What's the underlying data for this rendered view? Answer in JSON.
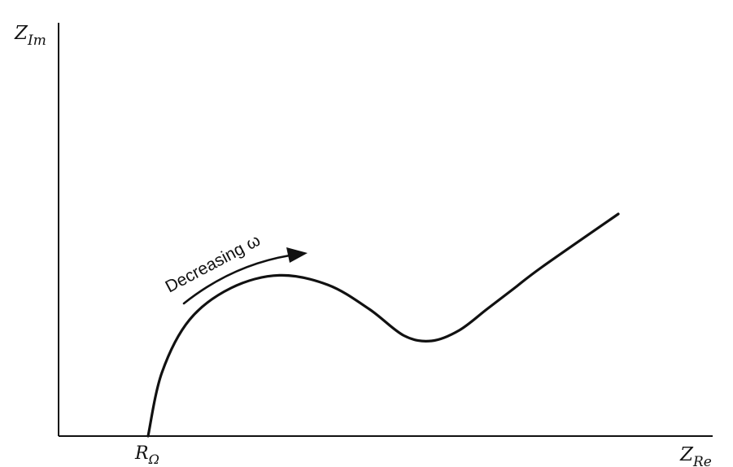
{
  "chart_data": {
    "type": "line",
    "title": "",
    "y_axis_label": {
      "main": "Z",
      "sub": "Im"
    },
    "x_axis_label": {
      "main": "Z",
      "sub": "Re"
    },
    "x_tick_label": {
      "main": "R",
      "sub": "Ω"
    },
    "annotation": "Decreasing ω",
    "grid": false,
    "legend": "none",
    "series": [
      {
        "x": [
          0.0,
          0.1,
          0.3,
          0.6,
          0.95,
          1.3,
          1.6,
          1.85,
          2.05,
          2.25,
          2.45,
          2.65,
          2.85,
          3.4
        ],
        "y": [
          0.0,
          0.6,
          1.1,
          1.4,
          1.52,
          1.43,
          1.2,
          0.95,
          0.9,
          1.0,
          1.2,
          1.4,
          1.6,
          2.1
        ]
      }
    ]
  },
  "colors": {
    "ink": "#111111",
    "background": "#ffffff"
  }
}
